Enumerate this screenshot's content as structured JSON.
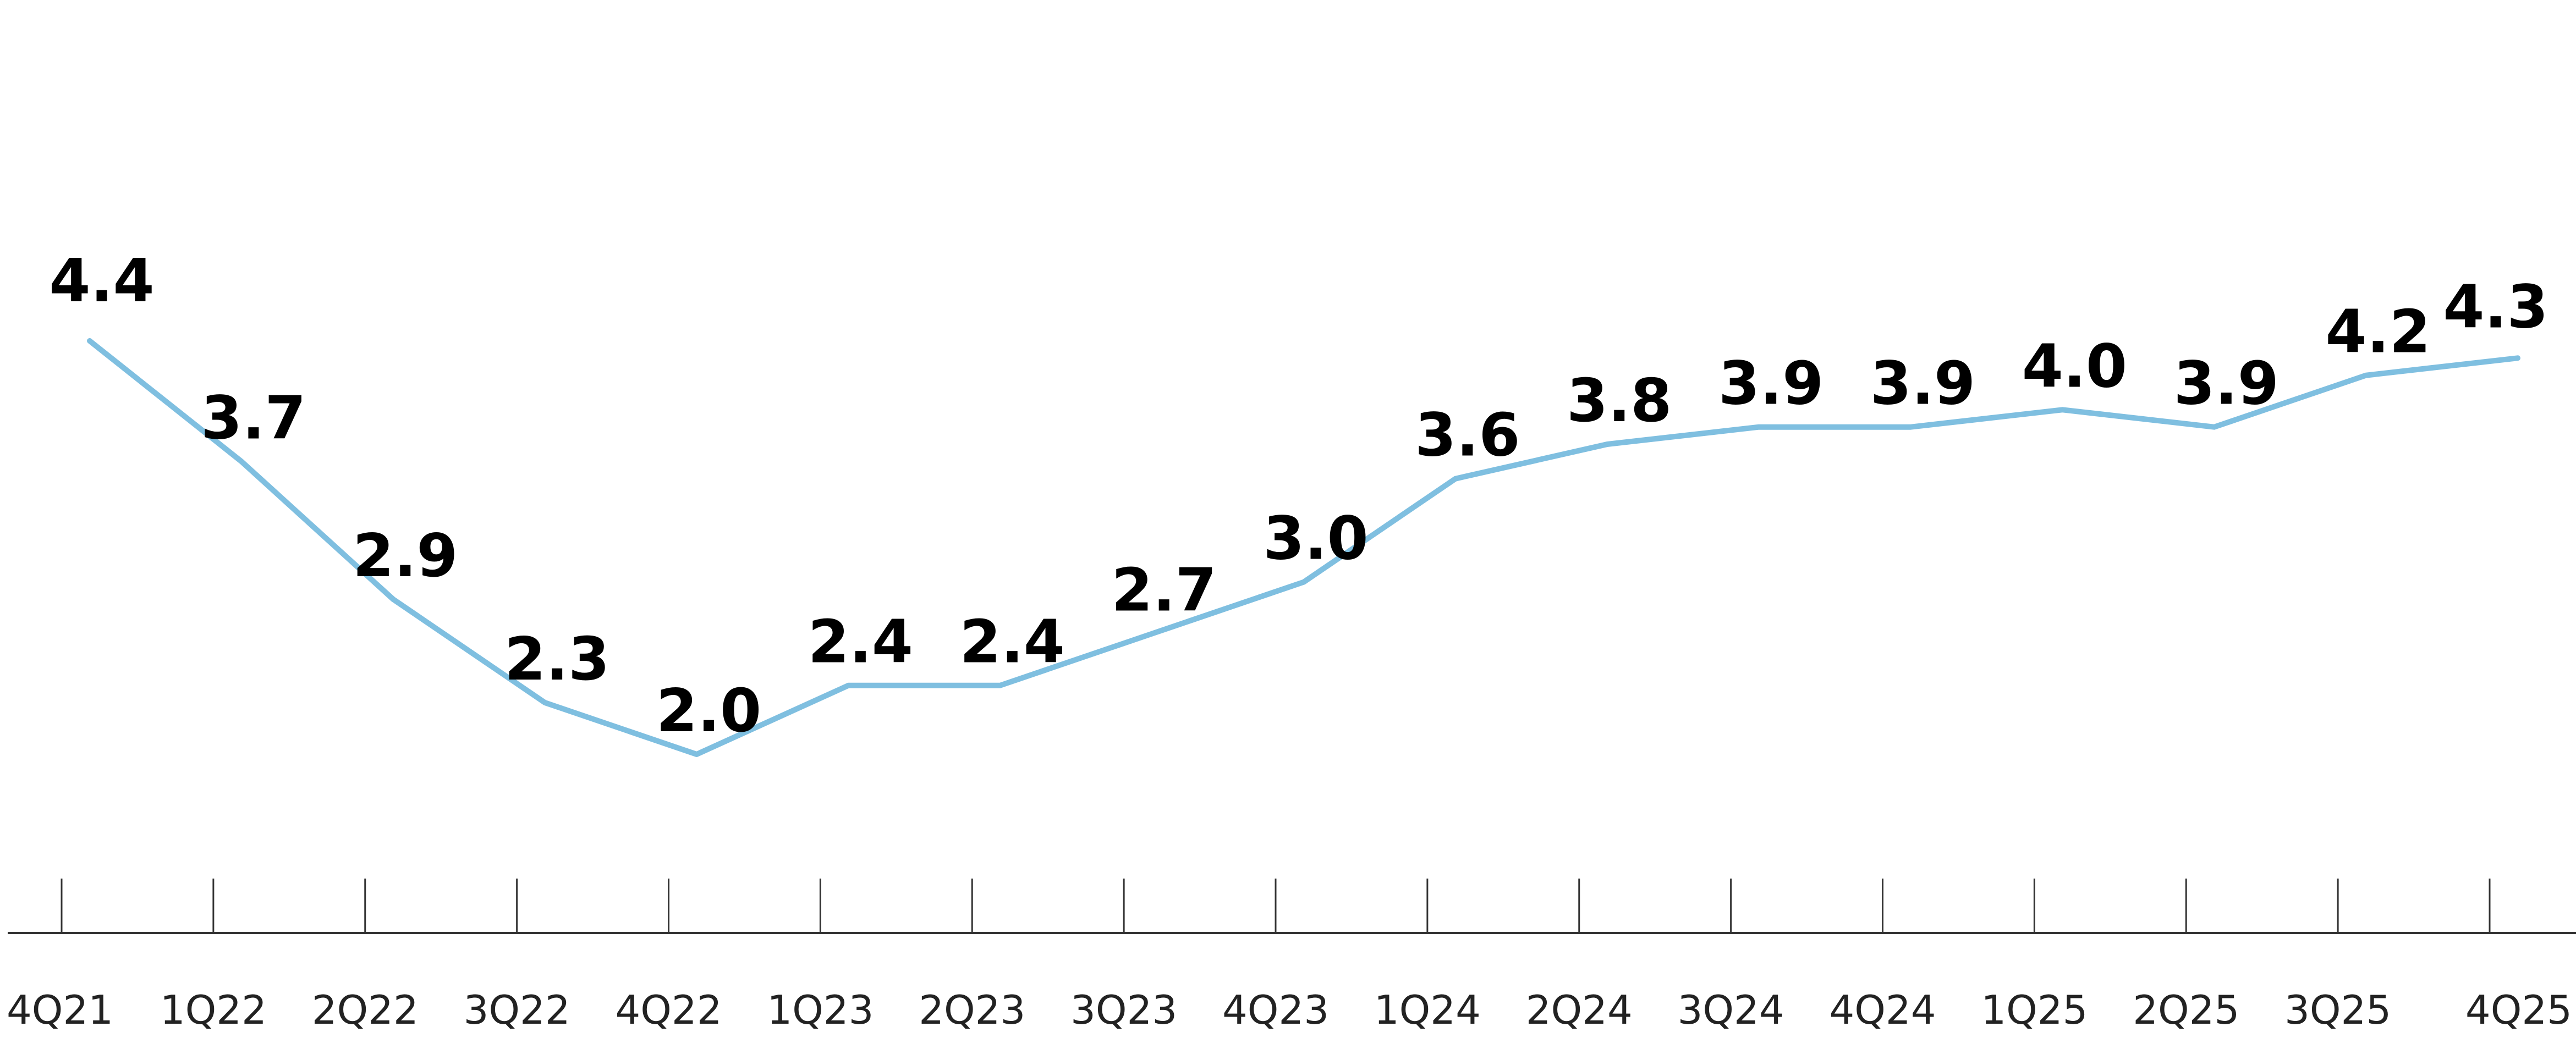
{
  "chart_data": {
    "type": "line",
    "title": "",
    "xlabel": "",
    "ylabel": "",
    "categories": [
      "4Q21",
      "1Q22",
      "2Q22",
      "3Q22",
      "4Q22",
      "1Q23",
      "2Q23",
      "3Q23",
      "4Q23",
      "1Q24",
      "2Q24",
      "3Q24",
      "4Q24",
      "1Q25",
      "2Q25",
      "3Q25",
      "4Q25"
    ],
    "series": [
      {
        "values": [
          4.4,
          3.7,
          2.9,
          2.3,
          2.0,
          2.4,
          2.4,
          2.7,
          3.0,
          3.6,
          3.8,
          3.9,
          3.9,
          4.0,
          3.9,
          4.2,
          4.3
        ],
        "data_labels": [
          "4.4",
          "3.7",
          "2.9",
          "2.3",
          "2.0",
          "2.4",
          "2.4",
          "2.7",
          "3.0",
          "3.6",
          "3.8",
          "3.9",
          "3.9",
          "4.0",
          "3.9",
          "4.2",
          "4.3"
        ],
        "color": "#7fbfe0"
      }
    ],
    "grid": false,
    "legend": "none",
    "axis_color": "#333333"
  }
}
